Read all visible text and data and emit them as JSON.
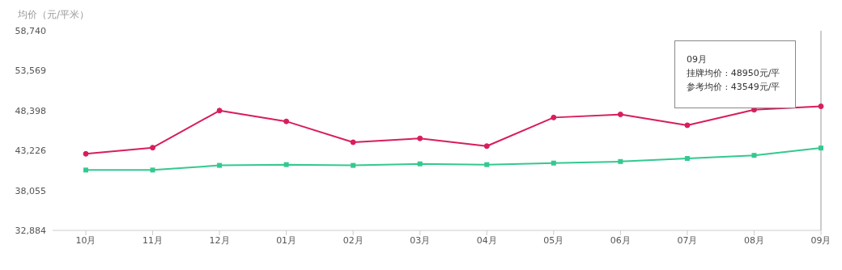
{
  "chart_data": {
    "type": "line",
    "ylabel": "均价（元/平米）",
    "categories": [
      "10月",
      "11月",
      "12月",
      "01月",
      "02月",
      "03月",
      "04月",
      "05月",
      "06月",
      "07月",
      "08月",
      "09月"
    ],
    "series": [
      {
        "color": "#d81e5b",
        "marker": "circle",
        "values": [
          42800,
          43600,
          48400,
          47000,
          44300,
          44800,
          43800,
          47500,
          47900,
          46500,
          48500,
          48950
        ]
      },
      {
        "color": "#33c98f",
        "marker": "square",
        "values": [
          40700,
          40700,
          41300,
          41400,
          41300,
          41500,
          41400,
          41600,
          41800,
          42200,
          42600,
          43549
        ]
      }
    ],
    "ylim": [
      32884,
      58740
    ],
    "yticks": [
      {
        "value": 32884,
        "label": "32,884"
      },
      {
        "value": 38055,
        "label": "38,055"
      },
      {
        "value": 43226,
        "label": "43,226"
      },
      {
        "value": 48398,
        "label": "48,398"
      },
      {
        "value": 53569,
        "label": "53,569"
      },
      {
        "value": 58740,
        "label": "58,740"
      }
    ],
    "grid": false,
    "legend": false,
    "ref_lines": [
      {
        "axis": "x",
        "value": "09月",
        "color": "#999999"
      }
    ],
    "annotations": [
      "09月",
      "挂牌均价 : 48950元/平",
      "参考均价 : 43549元/平"
    ]
  }
}
